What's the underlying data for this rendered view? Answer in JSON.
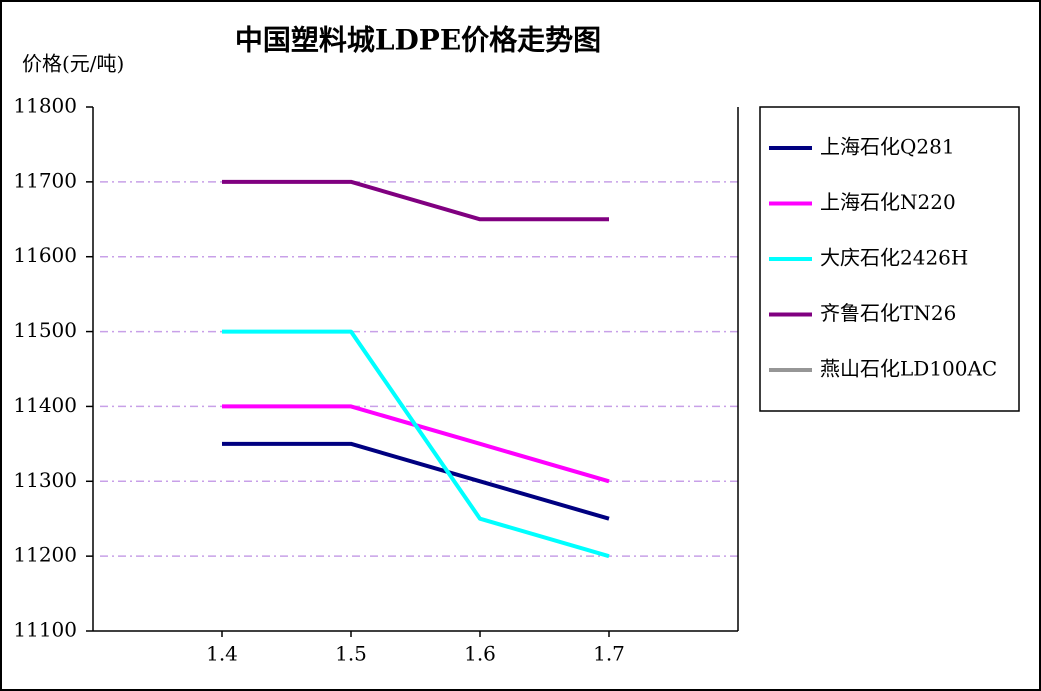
{
  "chart_data": {
    "type": "line",
    "title": "中国塑料城LDPE价格走势图",
    "y_label": "价格(元/吨)",
    "categories": [
      "1.4",
      "1.5",
      "1.6",
      "1.7"
    ],
    "series": [
      {
        "name": "上海石化Q281",
        "color": "#000080",
        "values": [
          11350,
          11350,
          11300,
          11250
        ]
      },
      {
        "name": "上海石化N220",
        "color": "#ff00ff",
        "values": [
          11400,
          11400,
          11350,
          11300
        ]
      },
      {
        "name": "大庆石化2426H",
        "color": "#00ffff",
        "values": [
          11500,
          11500,
          11250,
          11200
        ]
      },
      {
        "name": "齐鲁石化TN26",
        "color": "#800080",
        "values": [
          11700,
          11700,
          11650,
          11650
        ]
      },
      {
        "name": "燕山石化LD100AC",
        "color": "#969696",
        "values": [
          null,
          null,
          null,
          null
        ]
      }
    ],
    "ylim": [
      11100,
      11800
    ],
    "yticks": [
      11100,
      11200,
      11300,
      11400,
      11500,
      11600,
      11700,
      11800
    ],
    "grid": true,
    "legend": "right"
  }
}
